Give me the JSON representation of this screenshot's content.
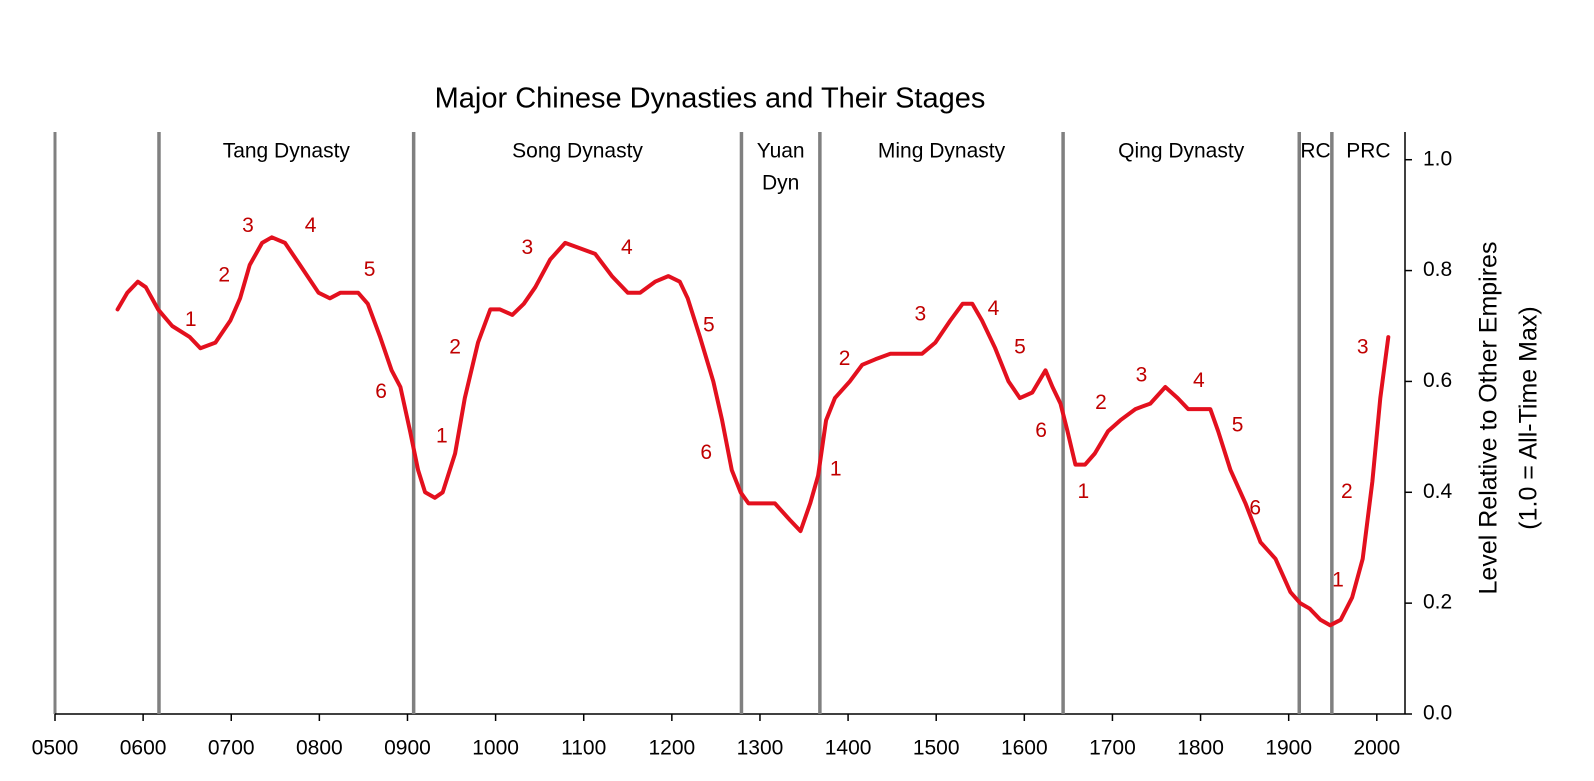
{
  "chart_data": {
    "type": "line",
    "title": "Major Chinese Dynasties and Their Stages",
    "ylabel": [
      "Level Relative to Other Empires",
      "(1.0 = All-Time Max)"
    ],
    "color": "#e3101e",
    "annotation_color": "#c00000",
    "xlim": [
      500,
      2032
    ],
    "xticks": [
      {
        "value": 500,
        "label": "0500"
      },
      {
        "value": 600,
        "label": "0600"
      },
      {
        "value": 700,
        "label": "0700"
      },
      {
        "value": 800,
        "label": "0800"
      },
      {
        "value": 900,
        "label": "0900"
      },
      1000,
      1100,
      1200,
      1300,
      1400,
      1500,
      1600,
      1700,
      1800,
      1900,
      2000
    ],
    "ylim": [
      0,
      1.05
    ],
    "yticks": [
      {
        "value": 0,
        "label": "0.0"
      },
      0.2,
      0.4,
      0.6,
      0.8,
      {
        "value": 1,
        "label": "1.0"
      }
    ],
    "x": [
      571,
      582,
      594,
      603,
      617,
      633,
      653,
      665,
      682,
      699,
      710,
      721,
      735,
      746,
      761,
      778,
      799,
      812,
      824,
      844,
      855,
      869,
      882,
      892,
      903,
      912,
      920,
      931,
      940,
      954,
      965,
      980,
      994,
      1005,
      1019,
      1032,
      1045,
      1062,
      1079,
      1096,
      1113,
      1132,
      1150,
      1164,
      1181,
      1196,
      1209,
      1218,
      1232,
      1247,
      1257,
      1268,
      1278,
      1287,
      1300,
      1317,
      1334,
      1346,
      1357,
      1366,
      1375,
      1385,
      1402,
      1416,
      1431,
      1448,
      1465,
      1484,
      1499,
      1516,
      1530,
      1541,
      1552,
      1567,
      1582,
      1595,
      1609,
      1624,
      1632,
      1641,
      1649,
      1658,
      1669,
      1680,
      1695,
      1709,
      1726,
      1743,
      1760,
      1774,
      1786,
      1799,
      1811,
      1820,
      1834,
      1851,
      1868,
      1885,
      1902,
      1913,
      1924,
      1936,
      1947,
      1959,
      1972,
      1984,
      1995,
      2004,
      2013
    ],
    "values": [
      0.73,
      0.76,
      0.78,
      0.77,
      0.73,
      0.7,
      0.68,
      0.66,
      0.67,
      0.71,
      0.75,
      0.81,
      0.85,
      0.86,
      0.85,
      0.81,
      0.76,
      0.75,
      0.76,
      0.76,
      0.74,
      0.68,
      0.62,
      0.59,
      0.51,
      0.44,
      0.4,
      0.39,
      0.4,
      0.47,
      0.57,
      0.67,
      0.73,
      0.73,
      0.72,
      0.74,
      0.77,
      0.82,
      0.85,
      0.84,
      0.83,
      0.79,
      0.76,
      0.76,
      0.78,
      0.79,
      0.78,
      0.75,
      0.68,
      0.6,
      0.53,
      0.44,
      0.4,
      0.38,
      0.38,
      0.38,
      0.35,
      0.33,
      0.38,
      0.43,
      0.53,
      0.57,
      0.6,
      0.63,
      0.64,
      0.65,
      0.65,
      0.65,
      0.67,
      0.71,
      0.74,
      0.74,
      0.71,
      0.66,
      0.6,
      0.57,
      0.58,
      0.62,
      0.59,
      0.56,
      0.51,
      0.45,
      0.45,
      0.47,
      0.51,
      0.53,
      0.55,
      0.56,
      0.59,
      0.57,
      0.55,
      0.55,
      0.55,
      0.51,
      0.44,
      0.38,
      0.31,
      0.28,
      0.22,
      0.2,
      0.19,
      0.17,
      0.16,
      0.17,
      0.21,
      0.28,
      0.42,
      0.57,
      0.68
    ],
    "dynasties": [
      {
        "label": [
          "Tang Dynasty"
        ],
        "start": 618
      },
      {
        "label": [
          "Song Dynasty"
        ],
        "start": 907
      },
      {
        "label": [
          "Yuan",
          "Dyn"
        ],
        "start": 1279
      },
      {
        "label": [
          "Ming Dynasty"
        ],
        "start": 1368
      },
      {
        "label": [
          "Qing Dynasty"
        ],
        "start": 1644
      },
      {
        "label": [
          "RC"
        ],
        "start": 1912
      },
      {
        "label": [
          "PRC"
        ],
        "start": 1949
      }
    ],
    "annotations": [
      {
        "text": "1",
        "x": 654,
        "y": 0.71
      },
      {
        "text": "2",
        "x": 692,
        "y": 0.79
      },
      {
        "text": "3",
        "x": 719,
        "y": 0.88
      },
      {
        "text": "4",
        "x": 790,
        "y": 0.88
      },
      {
        "text": "5",
        "x": 857,
        "y": 0.8
      },
      {
        "text": "6",
        "x": 870,
        "y": 0.58
      },
      {
        "text": "1",
        "x": 939,
        "y": 0.5
      },
      {
        "text": "2",
        "x": 954,
        "y": 0.66
      },
      {
        "text": "3",
        "x": 1036,
        "y": 0.84
      },
      {
        "text": "4",
        "x": 1149,
        "y": 0.84
      },
      {
        "text": "5",
        "x": 1242,
        "y": 0.7
      },
      {
        "text": "6",
        "x": 1239,
        "y": 0.47
      },
      {
        "text": "1",
        "x": 1386,
        "y": 0.44
      },
      {
        "text": "2",
        "x": 1396,
        "y": 0.64
      },
      {
        "text": "3",
        "x": 1482,
        "y": 0.72
      },
      {
        "text": "4",
        "x": 1565,
        "y": 0.73
      },
      {
        "text": "5",
        "x": 1595,
        "y": 0.66
      },
      {
        "text": "6",
        "x": 1619,
        "y": 0.51
      },
      {
        "text": "1",
        "x": 1667,
        "y": 0.4
      },
      {
        "text": "2",
        "x": 1687,
        "y": 0.56
      },
      {
        "text": "3",
        "x": 1733,
        "y": 0.61
      },
      {
        "text": "4",
        "x": 1798,
        "y": 0.6
      },
      {
        "text": "5",
        "x": 1842,
        "y": 0.52
      },
      {
        "text": "6",
        "x": 1862,
        "y": 0.37
      },
      {
        "text": "1",
        "x": 1956,
        "y": 0.24
      },
      {
        "text": "2",
        "x": 1966,
        "y": 0.4
      },
      {
        "text": "3",
        "x": 1984,
        "y": 0.66
      }
    ]
  }
}
